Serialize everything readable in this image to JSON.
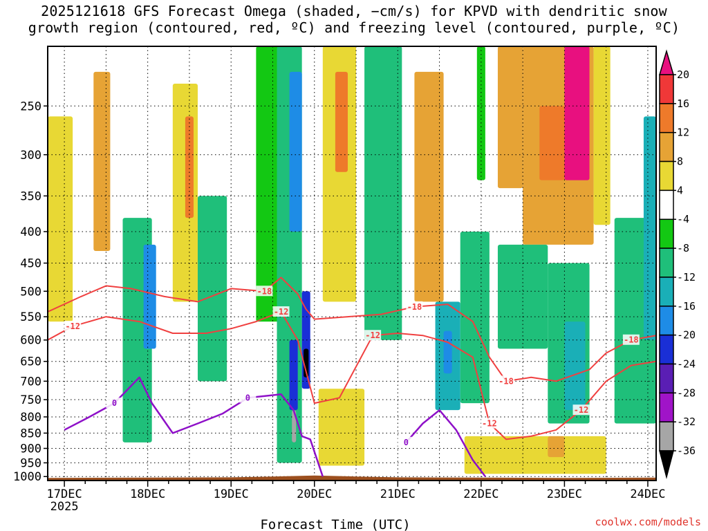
{
  "title_line1": "2025121618 GFS Forecast Omega (shaded, −cm/s) for KPVD with dendritic snow",
  "title_line2": "growth region (contoured, red, ºC) and freezing level (contoured, purple, ºC)",
  "credit": "coolwx.com/models",
  "chart_data": {
    "type": "heatmap",
    "title": "2025121618 GFS Forecast Omega (shaded, −cm/s) for KPVD with dendritic snow growth region (contoured, red, ºC) and freezing level (contoured, purple, ºC)",
    "xlabel": "Forecast Time (UTC)",
    "ylabel": "",
    "x_unit": "days since 17 DEC 2025 00Z",
    "xlim": [
      -0.2,
      7.1
    ],
    "x_ticks": [
      {
        "label": "17DEC",
        "sub": "2025",
        "value": 0
      },
      {
        "label": "18DEC",
        "sub": "",
        "value": 1
      },
      {
        "label": "19DEC",
        "sub": "",
        "value": 2
      },
      {
        "label": "20DEC",
        "sub": "",
        "value": 3
      },
      {
        "label": "21DEC",
        "sub": "",
        "value": 4
      },
      {
        "label": "22DEC",
        "sub": "",
        "value": 5
      },
      {
        "label": "23DEC",
        "sub": "",
        "value": 6
      },
      {
        "label": "24DEC",
        "sub": "",
        "value": 7
      }
    ],
    "y_ticks": [
      250,
      300,
      350,
      400,
      450,
      500,
      550,
      600,
      650,
      700,
      750,
      800,
      850,
      900,
      950,
      1000
    ],
    "ylim_hpa": [
      200,
      1015
    ],
    "y_scale": "log-pressure",
    "colorbar": {
      "labels": [
        "20",
        "16",
        "12",
        "8",
        "4",
        "-4",
        "-8",
        "-12",
        "-16",
        "-20",
        "-24",
        "-28",
        "-32",
        "-36"
      ],
      "bins": [
        {
          "range": "> 20",
          "color": "#e8107f"
        },
        {
          "range": "16 to 20",
          "color": "#f03838"
        },
        {
          "range": "12 to 16",
          "color": "#ee7a2a"
        },
        {
          "range": "8 to 12",
          "color": "#e6a335"
        },
        {
          "range": "4 to 8",
          "color": "#e8d834"
        },
        {
          "range": "-4 to 4",
          "color": "#ffffff"
        },
        {
          "range": "-8 to -4",
          "color": "#13c813"
        },
        {
          "range": "-12 to -8",
          "color": "#1fbf7a"
        },
        {
          "range": "-16 to -12",
          "color": "#1aafb7"
        },
        {
          "range": "-20 to -16",
          "color": "#1e8ce6"
        },
        {
          "range": "-24 to -20",
          "color": "#1a2fd6"
        },
        {
          "range": "-28 to -24",
          "color": "#5a1eb4"
        },
        {
          "range": "-32 to -28",
          "color": "#a014c8"
        },
        {
          "range": "-36 to -32",
          "color": "#a6a6a6"
        },
        {
          "range": "< -36",
          "color": "#000000"
        }
      ]
    },
    "omega_regions": [
      {
        "x0": -0.2,
        "x1": 0.1,
        "p0": 260,
        "p1": 560,
        "value": 6
      },
      {
        "x0": 0.35,
        "x1": 0.55,
        "p0": 220,
        "p1": 430,
        "value": 10
      },
      {
        "x0": 0.7,
        "x1": 1.05,
        "p0": 380,
        "p1": 880,
        "value": -10
      },
      {
        "x0": 0.95,
        "x1": 1.1,
        "p0": 420,
        "p1": 620,
        "value": -16
      },
      {
        "x0": 1.3,
        "x1": 1.6,
        "p0": 230,
        "p1": 520,
        "value": 6
      },
      {
        "x0": 1.45,
        "x1": 1.55,
        "p0": 260,
        "p1": 380,
        "value": 14
      },
      {
        "x0": 1.6,
        "x1": 1.95,
        "p0": 350,
        "p1": 700,
        "value": -8
      },
      {
        "x0": 2.3,
        "x1": 2.75,
        "p0": 200,
        "p1": 560,
        "value": -6
      },
      {
        "x0": 2.55,
        "x1": 2.85,
        "p0": 200,
        "p1": 950,
        "value": -10
      },
      {
        "x0": 2.7,
        "x1": 2.85,
        "p0": 220,
        "p1": 400,
        "value": -16
      },
      {
        "x0": 2.7,
        "x1": 2.8,
        "p0": 600,
        "p1": 780,
        "value": -20
      },
      {
        "x0": 2.73,
        "x1": 2.78,
        "p0": 780,
        "p1": 880,
        "value": -32
      },
      {
        "x0": 2.85,
        "x1": 2.95,
        "p0": 500,
        "p1": 720,
        "value": -20
      },
      {
        "x0": 2.87,
        "x1": 2.93,
        "p0": 620,
        "p1": 690,
        "value": -36
      },
      {
        "x0": 3.1,
        "x1": 3.5,
        "p0": 200,
        "p1": 520,
        "value": 8
      },
      {
        "x0": 3.25,
        "x1": 3.4,
        "p0": 220,
        "p1": 320,
        "value": 14
      },
      {
        "x0": 3.05,
        "x1": 3.6,
        "p0": 720,
        "p1": 960,
        "value": 5
      },
      {
        "x0": 3.6,
        "x1": 4.05,
        "p0": 200,
        "p1": 600,
        "value": -8
      },
      {
        "x0": 4.2,
        "x1": 4.55,
        "p0": 220,
        "p1": 520,
        "value": 10
      },
      {
        "x0": 4.45,
        "x1": 4.75,
        "p0": 520,
        "p1": 780,
        "value": -14
      },
      {
        "x0": 4.55,
        "x1": 4.65,
        "p0": 580,
        "p1": 680,
        "value": -18
      },
      {
        "x0": 4.75,
        "x1": 5.1,
        "p0": 400,
        "p1": 760,
        "value": -8
      },
      {
        "x0": 4.95,
        "x1": 5.05,
        "p0": 200,
        "p1": 330,
        "value": -6
      },
      {
        "x0": 5.2,
        "x1": 5.5,
        "p0": 200,
        "p1": 340,
        "value": 10
      },
      {
        "x0": 5.5,
        "x1": 6.35,
        "p0": 200,
        "p1": 420,
        "value": 12
      },
      {
        "x0": 5.7,
        "x1": 6.0,
        "p0": 250,
        "p1": 330,
        "value": 16
      },
      {
        "x0": 6.0,
        "x1": 6.3,
        "p0": 200,
        "p1": 330,
        "value": 22
      },
      {
        "x0": 6.35,
        "x1": 6.55,
        "p0": 200,
        "p1": 390,
        "value": 6
      },
      {
        "x0": 5.2,
        "x1": 5.8,
        "p0": 420,
        "p1": 620,
        "value": -8
      },
      {
        "x0": 5.8,
        "x1": 6.3,
        "p0": 450,
        "p1": 820,
        "value": -10
      },
      {
        "x0": 6.0,
        "x1": 6.25,
        "p0": 560,
        "p1": 780,
        "value": -14
      },
      {
        "x0": 6.6,
        "x1": 7.1,
        "p0": 380,
        "p1": 820,
        "value": -10
      },
      {
        "x0": 6.95,
        "x1": 7.1,
        "p0": 260,
        "p1": 600,
        "value": -14
      },
      {
        "x0": 4.8,
        "x1": 6.5,
        "p0": 860,
        "p1": 990,
        "value": 5
      },
      {
        "x0": 5.8,
        "x1": 6.0,
        "p0": 860,
        "p1": 930,
        "value": 9
      }
    ],
    "dgz_contours": [
      {
        "label": "-18",
        "color": "#f04040",
        "x": [
          -0.2,
          0.2,
          0.5,
          0.8,
          1.2,
          1.6,
          2.0,
          2.4,
          2.6,
          2.8,
          2.9,
          3.0,
          3.4,
          3.8,
          4.2,
          4.6,
          4.9,
          5.1,
          5.3,
          5.6,
          5.9,
          6.3,
          6.5,
          6.8,
          7.1
        ],
        "p": [
          540,
          510,
          490,
          495,
          510,
          520,
          495,
          500,
          475,
          505,
          535,
          555,
          550,
          545,
          530,
          525,
          560,
          640,
          700,
          690,
          700,
          670,
          630,
          600,
          590
        ]
      },
      {
        "label": "-12",
        "color": "#f04040",
        "x": [
          -0.2,
          0.1,
          0.5,
          0.9,
          1.3,
          1.7,
          2.0,
          2.3,
          2.6,
          2.8,
          3.0,
          3.3,
          3.7,
          4.0,
          4.3,
          4.6,
          4.9,
          5.1,
          5.3,
          5.6,
          5.9,
          6.2,
          6.5,
          6.8,
          7.1
        ],
        "p": [
          600,
          570,
          550,
          560,
          585,
          585,
          575,
          560,
          540,
          600,
          760,
          745,
          590,
          585,
          590,
          605,
          640,
          820,
          870,
          860,
          840,
          780,
          700,
          660,
          650
        ]
      }
    ],
    "freezing_contours": [
      {
        "label": "0",
        "color": "#8e10c8",
        "x": [
          0.0,
          0.3,
          0.6,
          0.9,
          1.05,
          1.3,
          1.6,
          1.9,
          2.2,
          2.6,
          2.75,
          2.85,
          2.95,
          3.1
        ],
        "p": [
          840,
          800,
          760,
          690,
          760,
          850,
          820,
          790,
          745,
          735,
          780,
          860,
          870,
          1000
        ]
      },
      {
        "label": "0",
        "color": "#8e10c8",
        "x": [
          4.1,
          4.3,
          4.5,
          4.7,
          4.9,
          5.05
        ],
        "p": [
          880,
          820,
          780,
          840,
          940,
          1000
        ]
      }
    ],
    "terrain": {
      "x": [
        -0.2,
        1.0,
        2.0,
        2.5,
        3.0,
        3.5,
        4.0,
        5.0,
        6.0,
        7.1
      ],
      "p": [
        1005,
        1004,
        1003,
        1000,
        996,
        1000,
        1003,
        1004,
        1005,
        1004
      ]
    }
  }
}
